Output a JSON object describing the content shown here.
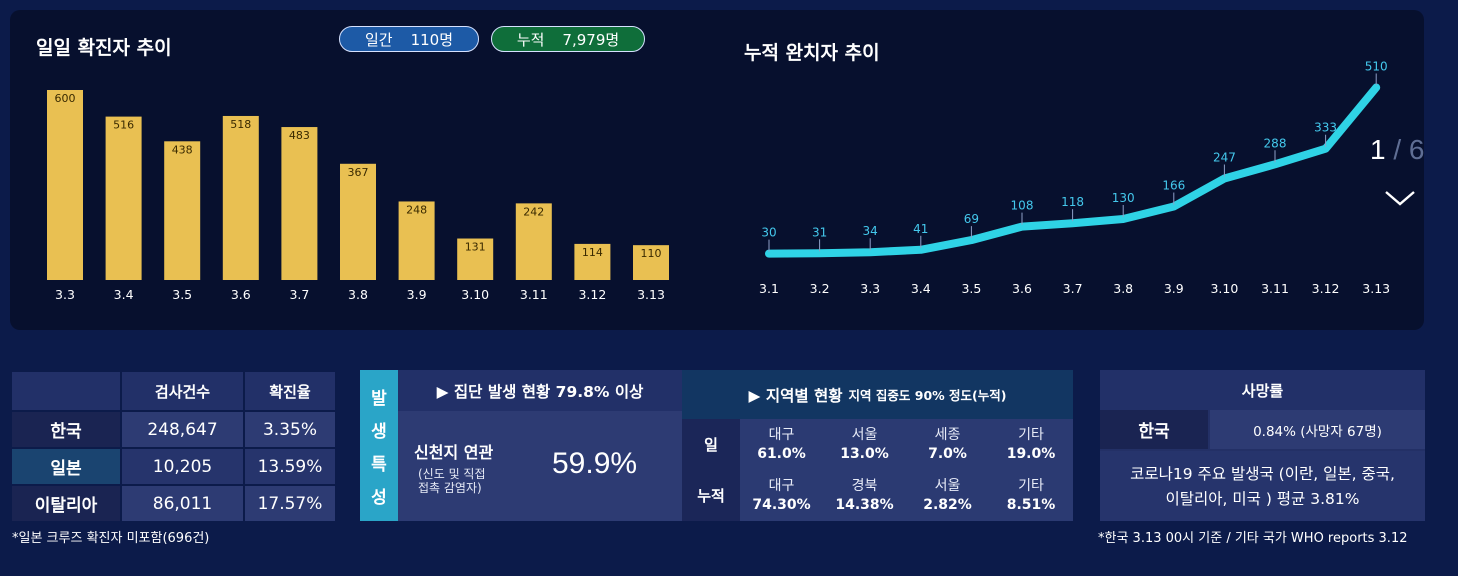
{
  "daily_chart": {
    "title": "일일 확진자 추이",
    "daily_pill": {
      "label": "일간",
      "value": "110명"
    },
    "cum_pill": {
      "label": "누적",
      "value": "7,979명"
    }
  },
  "cumulative_chart": {
    "title": "누적 완치자 추이"
  },
  "chart_data": [
    {
      "type": "bar",
      "title": "일일 확진자 추이",
      "categories": [
        "3.3",
        "3.4",
        "3.5",
        "3.6",
        "3.7",
        "3.8",
        "3.9",
        "3.10",
        "3.11",
        "3.12",
        "3.13"
      ],
      "values": [
        600,
        516,
        438,
        518,
        483,
        367,
        248,
        131,
        242,
        114,
        110
      ],
      "bar_color": "#e9c052",
      "ylim": [
        0,
        600
      ]
    },
    {
      "type": "line",
      "title": "누적 완치자 추이",
      "categories": [
        "3.1",
        "3.2",
        "3.3",
        "3.4",
        "3.5",
        "3.6",
        "3.7",
        "3.8",
        "3.9",
        "3.10",
        "3.11",
        "3.12",
        "3.13"
      ],
      "values": [
        30,
        31,
        34,
        41,
        69,
        108,
        118,
        130,
        166,
        247,
        288,
        333,
        510
      ],
      "line_color": "#2fd3e6",
      "label_color": "#44c8ec",
      "ylim": [
        0,
        520
      ]
    }
  ],
  "pager": {
    "current": "1",
    "sep": "/",
    "total": "6"
  },
  "test_table": {
    "headers": [
      "",
      "검사건수",
      "확진율"
    ],
    "rows": [
      {
        "country": "한국",
        "tests": "248,647",
        "rate": "3.35%"
      },
      {
        "country": "일본",
        "tests": "10,205",
        "rate": "13.59%"
      },
      {
        "country": "이탈리아",
        "tests": "86,011",
        "rate": "17.57%"
      }
    ],
    "note": "*일본 크루즈 확진자 미포함(696건)"
  },
  "cluster": {
    "side_label": [
      "발",
      "생",
      "특",
      "성"
    ],
    "group_title": "▶ 집단 발생 현황 79.8% 이상",
    "shincheonji_label": "신천지 연관",
    "shincheonji_sub1": "(신도 및 직접",
    "shincheonji_sub2": "접촉 감염자)",
    "shincheonji_value": "59.9%",
    "region_title": "▶ 지역별 현황",
    "region_sub": "지역 집중도 90% 정도(누적)",
    "daily_label": "일",
    "cum_label": "누적",
    "daily": [
      {
        "region": "대구",
        "pct": "61.0%"
      },
      {
        "region": "서울",
        "pct": "13.0%"
      },
      {
        "region": "세종",
        "pct": "7.0%"
      },
      {
        "region": "기타",
        "pct": "19.0%"
      }
    ],
    "cumulative": [
      {
        "region": "대구",
        "pct": "74.30%"
      },
      {
        "region": "경북",
        "pct": "14.38%"
      },
      {
        "region": "서울",
        "pct": "2.82%"
      },
      {
        "region": "기타",
        "pct": "8.51%"
      }
    ]
  },
  "death": {
    "title": "사망률",
    "country": "한국",
    "value": "0.84% (사망자 67명)",
    "summary_line1": "코로나19 주요 발생국 (이란, 일본, 중국,",
    "summary_line2": "이탈리아, 미국 ) 평균 3.81%",
    "note": "*한국 3.13 00시 기준 / 기타 국가 WHO reports 3.12"
  }
}
